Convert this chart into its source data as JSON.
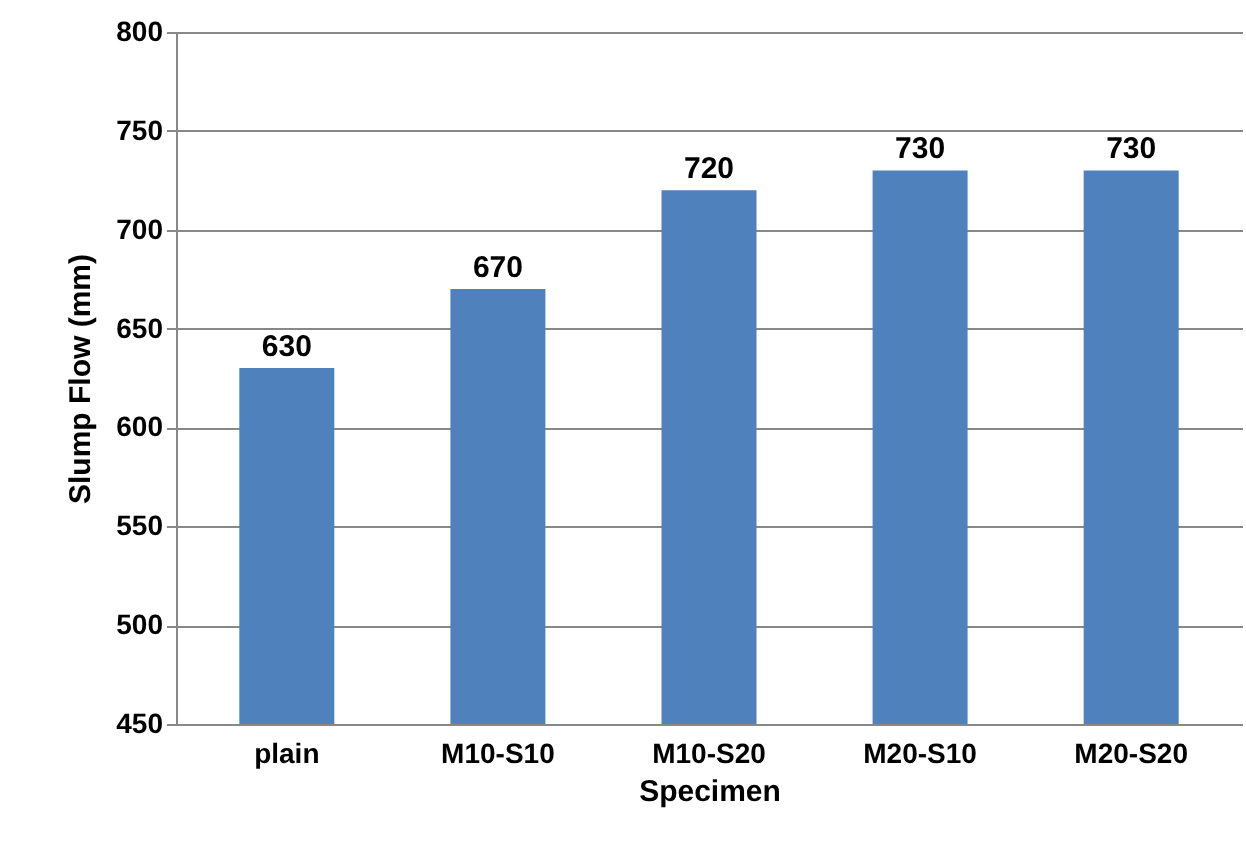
{
  "chart_data": {
    "type": "bar",
    "xlabel": "Specimen",
    "ylabel": "Slump Flow (mm)",
    "categories": [
      "plain",
      "M10-S10",
      "M10-S20",
      "M20-S10",
      "M20-S20"
    ],
    "values": [
      630,
      670,
      720,
      730,
      730
    ],
    "color": "#4f81bd",
    "ylim": [
      450,
      800
    ],
    "yticks": [
      450,
      500,
      550,
      600,
      650,
      700,
      750,
      800
    ],
    "grid": "y",
    "data_labels": true
  }
}
